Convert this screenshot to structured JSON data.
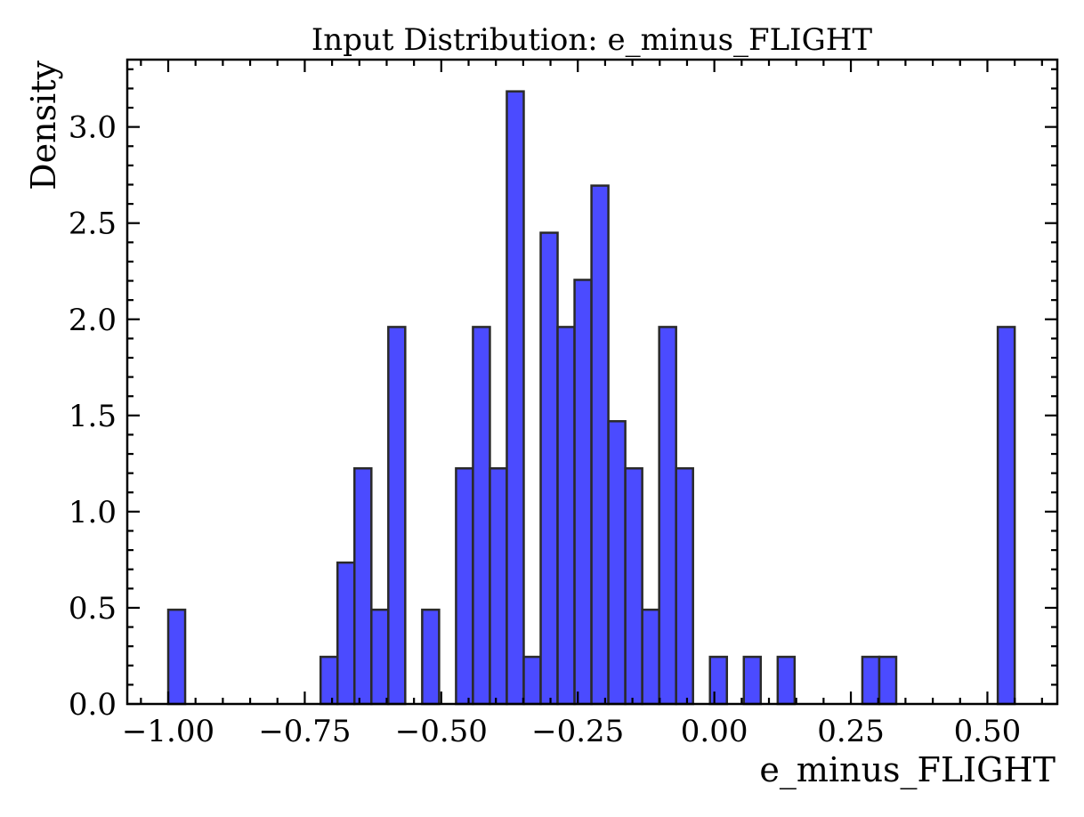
{
  "chart_data": {
    "type": "bar",
    "title": "Input Distribution: e_minus_FLIGHT",
    "xlabel": "e_minus_FLIGHT",
    "ylabel": "Density",
    "xlim": [
      -1.075,
      0.628
    ],
    "ylim": [
      0,
      3.35
    ],
    "xticks": [
      -1.0,
      -0.75,
      -0.5,
      -0.25,
      0.0,
      0.25,
      0.5
    ],
    "xtick_labels": [
      "−1.00",
      "−0.75",
      "−0.50",
      "−0.25",
      "0.00",
      "0.25",
      "0.50"
    ],
    "yticks": [
      0.0,
      0.5,
      1.0,
      1.5,
      2.0,
      2.5,
      3.0
    ],
    "ytick_labels": [
      "0.0",
      "0.5",
      "1.0",
      "1.5",
      "2.0",
      "2.5",
      "3.0"
    ],
    "x_minor_step": 0.05,
    "y_minor_step": 0.1,
    "bins": [
      {
        "x0": -1.0,
        "x1": -0.969,
        "value": 0.49
      },
      {
        "x0": -0.721,
        "x1": -0.69,
        "value": 0.245
      },
      {
        "x0": -0.69,
        "x1": -0.659,
        "value": 0.735
      },
      {
        "x0": -0.659,
        "x1": -0.628,
        "value": 1.225
      },
      {
        "x0": -0.628,
        "x1": -0.597,
        "value": 0.49
      },
      {
        "x0": -0.597,
        "x1": -0.566,
        "value": 1.96
      },
      {
        "x0": -0.535,
        "x1": -0.504,
        "value": 0.49
      },
      {
        "x0": -0.473,
        "x1": -0.442,
        "value": 1.225
      },
      {
        "x0": -0.442,
        "x1": -0.411,
        "value": 1.96
      },
      {
        "x0": -0.411,
        "x1": -0.38,
        "value": 1.225
      },
      {
        "x0": -0.38,
        "x1": -0.349,
        "value": 3.185
      },
      {
        "x0": -0.349,
        "x1": -0.318,
        "value": 0.245
      },
      {
        "x0": -0.318,
        "x1": -0.287,
        "value": 2.45
      },
      {
        "x0": -0.287,
        "x1": -0.256,
        "value": 1.96
      },
      {
        "x0": -0.256,
        "x1": -0.225,
        "value": 2.205
      },
      {
        "x0": -0.225,
        "x1": -0.194,
        "value": 2.695
      },
      {
        "x0": -0.194,
        "x1": -0.163,
        "value": 1.47
      },
      {
        "x0": -0.163,
        "x1": -0.132,
        "value": 1.225
      },
      {
        "x0": -0.132,
        "x1": -0.101,
        "value": 0.49
      },
      {
        "x0": -0.101,
        "x1": -0.07,
        "value": 1.96
      },
      {
        "x0": -0.07,
        "x1": -0.039,
        "value": 1.225
      },
      {
        "x0": -0.008,
        "x1": 0.023,
        "value": 0.245
      },
      {
        "x0": 0.054,
        "x1": 0.085,
        "value": 0.245
      },
      {
        "x0": 0.116,
        "x1": 0.147,
        "value": 0.245
      },
      {
        "x0": 0.271,
        "x1": 0.302,
        "value": 0.245
      },
      {
        "x0": 0.302,
        "x1": 0.333,
        "value": 0.245
      },
      {
        "x0": 0.519,
        "x1": 0.55,
        "value": 1.96
      }
    ],
    "bar_color": "#4b4bff",
    "edge_color": "#2a2a2a",
    "grid": false,
    "legend": "none"
  }
}
